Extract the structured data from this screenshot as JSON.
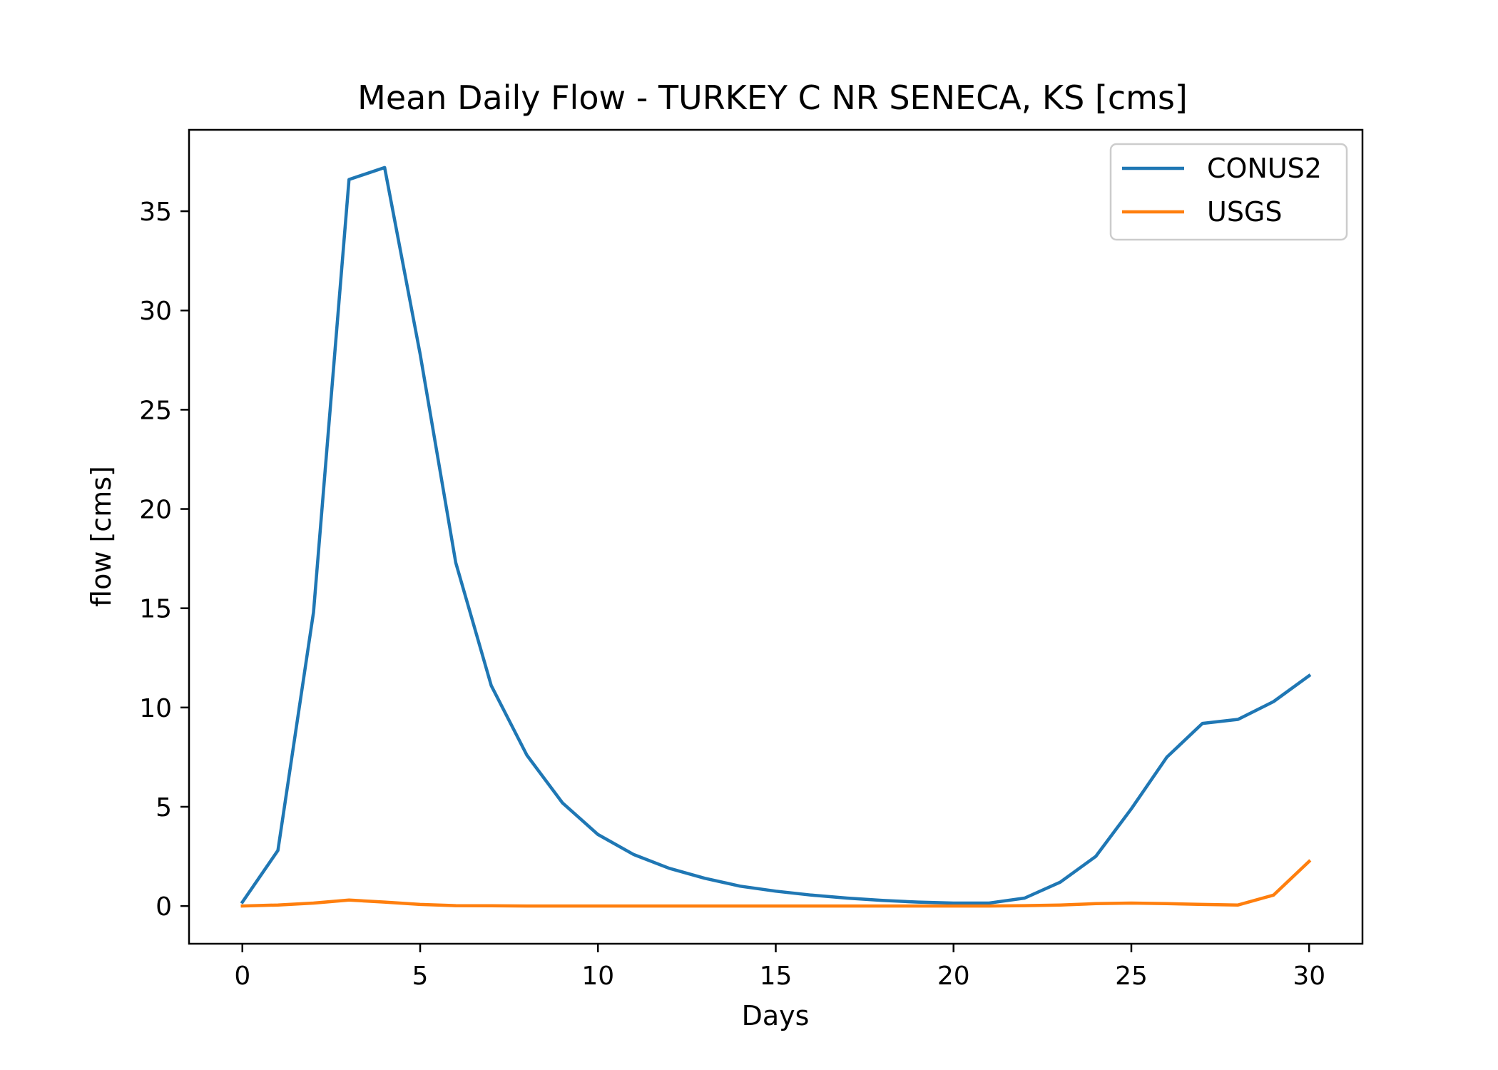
{
  "chart_data": {
    "type": "line",
    "title": "Mean Daily Flow - TURKEY C NR SENECA, KS [cms]",
    "xlabel": "Days",
    "ylabel": "flow [cms]",
    "xlim": [
      -1.5,
      31.5
    ],
    "ylim": [
      -1.9,
      39.1
    ],
    "xticks": [
      0,
      5,
      10,
      15,
      20,
      25,
      30
    ],
    "yticks": [
      0,
      5,
      10,
      15,
      20,
      25,
      30,
      35
    ],
    "grid": false,
    "legend_position": "top-right",
    "series": [
      {
        "name": "CONUS2",
        "color": "#1f77b4",
        "x": [
          0,
          1,
          2,
          3,
          4,
          5,
          6,
          7,
          8,
          9,
          10,
          11,
          12,
          13,
          14,
          15,
          16,
          17,
          18,
          19,
          20,
          21,
          22,
          23,
          24,
          25,
          26,
          27,
          28,
          29,
          30
        ],
        "y": [
          0.2,
          2.8,
          14.8,
          36.6,
          37.2,
          27.8,
          17.3,
          11.1,
          7.6,
          5.2,
          3.6,
          2.6,
          1.9,
          1.4,
          1.0,
          0.75,
          0.55,
          0.4,
          0.28,
          0.2,
          0.15,
          0.15,
          0.4,
          1.2,
          2.5,
          4.9,
          7.5,
          9.2,
          9.4,
          10.3,
          11.6
        ]
      },
      {
        "name": "USGS",
        "color": "#ff7f0e",
        "x": [
          0,
          1,
          2,
          3,
          4,
          5,
          6,
          7,
          8,
          9,
          10,
          11,
          12,
          13,
          14,
          15,
          16,
          17,
          18,
          19,
          20,
          21,
          22,
          23,
          24,
          25,
          26,
          27,
          28,
          29,
          30
        ],
        "y": [
          0.0,
          0.05,
          0.15,
          0.3,
          0.2,
          0.08,
          0.02,
          0.01,
          0.0,
          0.0,
          0.0,
          0.0,
          0.0,
          0.0,
          0.0,
          0.0,
          0.0,
          0.0,
          0.0,
          0.0,
          0.0,
          0.0,
          0.02,
          0.05,
          0.12,
          0.15,
          0.12,
          0.08,
          0.05,
          0.55,
          2.25
        ]
      }
    ]
  }
}
